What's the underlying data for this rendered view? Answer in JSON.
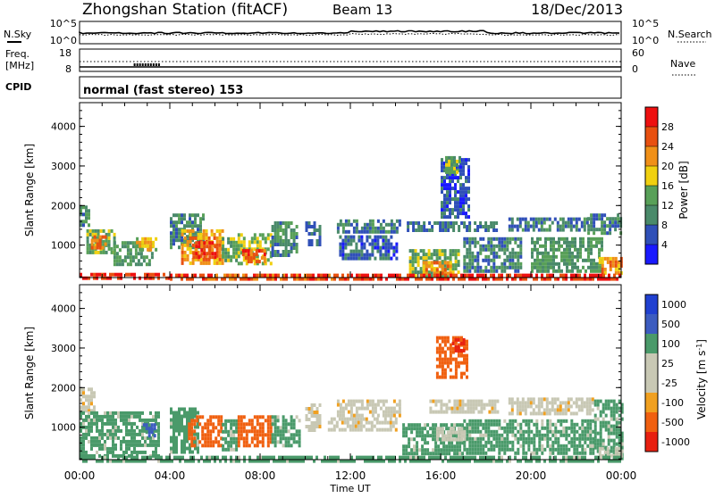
{
  "header": {
    "title": "Zhongshan Station (fitACF)",
    "beam": "Beam 13",
    "date": "18/Dec/2013"
  },
  "status_panels": {
    "nsky_label": "N.Sky",
    "nsearch_label": "N.Search",
    "freq_label_line1": "Freq.",
    "freq_label_line2": "[MHz]",
    "nave_label": "Nave",
    "cpid_label": "CPID",
    "cpid_text": "normal (fast stereo) 153",
    "noise_ticks_left": [
      "10^5",
      "10^0"
    ],
    "noise_ticks_right": [
      "10^5",
      "10^0"
    ],
    "freq_ticks_left": [
      "18",
      "8"
    ],
    "nave_ticks_right": [
      "60",
      "0"
    ]
  },
  "x_axis": {
    "label": "Time UT",
    "ticks": [
      "00:00",
      "04:00",
      "08:00",
      "12:00",
      "16:00",
      "20:00",
      "00:00"
    ],
    "tick_hours": [
      0,
      4,
      8,
      12,
      16,
      20,
      24
    ]
  },
  "colors": {
    "power": [
      "#1a1aff",
      "#3050b8",
      "#4a8a6a",
      "#58a058",
      "#f0d010",
      "#f09018",
      "#e85010",
      "#ee1010"
    ],
    "velocity": [
      "#e82010",
      "#f06010",
      "#f0a020",
      "#c8c8b4",
      "#c8c8b4",
      "#4a9a6a",
      "#3c5cc0",
      "#2040d0"
    ]
  },
  "chart_data": [
    {
      "type": "heatmap",
      "ylabel": "Slant Range [km]",
      "ylim": [
        180,
        4600
      ],
      "yticks": [
        1000,
        2000,
        3000,
        4000
      ],
      "xlim": [
        0,
        24
      ],
      "colorbar": {
        "label": "Power [dB]",
        "ticks": [
          "4",
          "8",
          "12",
          "16",
          "20",
          "24",
          "28"
        ],
        "range": [
          0,
          32
        ]
      },
      "regions": [
        {
          "t0": 0.0,
          "t1": 0.4,
          "r0": 1500,
          "r1": 2000,
          "v": 10
        },
        {
          "t0": 0.3,
          "t1": 1.5,
          "r0": 800,
          "r1": 1400,
          "v": 14
        },
        {
          "t0": 0.5,
          "t1": 1.2,
          "r0": 900,
          "r1": 1250,
          "v": 24
        },
        {
          "t0": 1.5,
          "t1": 3.2,
          "r0": 500,
          "r1": 1100,
          "v": 12
        },
        {
          "t0": 2.5,
          "t1": 3.4,
          "r0": 900,
          "r1": 1200,
          "v": 18
        },
        {
          "t0": 4.0,
          "t1": 5.5,
          "r0": 900,
          "r1": 1800,
          "v": 10
        },
        {
          "t0": 4.5,
          "t1": 6.3,
          "r0": 500,
          "r1": 1400,
          "v": 22
        },
        {
          "t0": 5.0,
          "t1": 6.0,
          "r0": 700,
          "r1": 1100,
          "v": 27
        },
        {
          "t0": 6.3,
          "t1": 7.0,
          "r0": 600,
          "r1": 1200,
          "v": 14
        },
        {
          "t0": 7.0,
          "t1": 8.5,
          "r0": 500,
          "r1": 1300,
          "v": 16
        },
        {
          "t0": 7.2,
          "t1": 8.2,
          "r0": 600,
          "r1": 900,
          "v": 26
        },
        {
          "t0": 8.5,
          "t1": 9.6,
          "r0": 700,
          "r1": 1600,
          "v": 10
        },
        {
          "t0": 10.0,
          "t1": 10.6,
          "r0": 1000,
          "r1": 1600,
          "v": 8
        },
        {
          "t0": 11.4,
          "t1": 14.2,
          "r0": 1350,
          "r1": 1650,
          "v": 9
        },
        {
          "t0": 11.5,
          "t1": 14.0,
          "r0": 700,
          "r1": 1250,
          "v": 7
        },
        {
          "t0": 14.5,
          "t1": 18.5,
          "r0": 1350,
          "r1": 1600,
          "v": 8
        },
        {
          "t0": 14.6,
          "t1": 16.8,
          "r0": 250,
          "r1": 900,
          "v": 14
        },
        {
          "t0": 15.2,
          "t1": 16.4,
          "r0": 300,
          "r1": 600,
          "v": 22
        },
        {
          "t0": 16.0,
          "t1": 17.3,
          "r0": 1700,
          "r1": 3200,
          "v": 6
        },
        {
          "t0": 16.2,
          "t1": 16.8,
          "r0": 2800,
          "r1": 3250,
          "v": 14
        },
        {
          "t0": 17.0,
          "t1": 19.5,
          "r0": 300,
          "r1": 1200,
          "v": 10
        },
        {
          "t0": 19.0,
          "t1": 22.5,
          "r0": 1350,
          "r1": 1700,
          "v": 9
        },
        {
          "t0": 20.0,
          "t1": 23.2,
          "r0": 350,
          "r1": 1200,
          "v": 12
        },
        {
          "t0": 22.5,
          "t1": 24.0,
          "r0": 1300,
          "r1": 1800,
          "v": 10
        },
        {
          "t0": 23.0,
          "t1": 24.0,
          "r0": 250,
          "r1": 700,
          "v": 22
        },
        {
          "t0": 0.0,
          "t1": 4.0,
          "r0": 180,
          "r1": 300,
          "v": 28
        },
        {
          "t0": 4.0,
          "t1": 12.0,
          "r0": 180,
          "r1": 280,
          "v": 26
        },
        {
          "t0": 12.0,
          "t1": 24.0,
          "r0": 180,
          "r1": 280,
          "v": 28
        }
      ]
    },
    {
      "type": "heatmap",
      "ylabel": "Slant Range [km]",
      "ylim": [
        180,
        4600
      ],
      "yticks": [
        1000,
        2000,
        3000,
        4000
      ],
      "xlim": [
        0,
        24
      ],
      "xlabel": "Time UT",
      "colorbar": {
        "label": "Velocity [m s^-1]",
        "ticks": [
          "-1000",
          "-500",
          "-100",
          "-25",
          "25",
          "100",
          "500",
          "1000"
        ],
        "range": [
          -1250,
          1250
        ]
      },
      "regions": [
        {
          "t0": 0.0,
          "t1": 0.6,
          "r0": 1400,
          "r1": 2000,
          "v": 0
        },
        {
          "t0": 0.0,
          "t1": 3.5,
          "r0": 250,
          "r1": 1400,
          "v": 150
        },
        {
          "t0": 2.8,
          "t1": 3.3,
          "r0": 800,
          "r1": 1100,
          "v": 700
        },
        {
          "t0": 4.0,
          "t1": 5.2,
          "r0": 400,
          "r1": 1500,
          "v": 150
        },
        {
          "t0": 4.8,
          "t1": 6.3,
          "r0": 500,
          "r1": 1300,
          "v": -300
        },
        {
          "t0": 6.3,
          "t1": 7.0,
          "r0": 400,
          "r1": 1200,
          "v": 150
        },
        {
          "t0": 7.0,
          "t1": 8.5,
          "r0": 500,
          "r1": 1300,
          "v": -300
        },
        {
          "t0": 8.5,
          "t1": 9.8,
          "r0": 500,
          "r1": 1300,
          "v": 150
        },
        {
          "t0": 10.0,
          "t1": 10.6,
          "r0": 900,
          "r1": 1600,
          "v": 0
        },
        {
          "t0": 11.4,
          "t1": 14.2,
          "r0": 1300,
          "r1": 1700,
          "v": 0
        },
        {
          "t0": 11.0,
          "t1": 14.0,
          "r0": 900,
          "r1": 1250,
          "v": 0
        },
        {
          "t0": 14.3,
          "t1": 17.0,
          "r0": 300,
          "r1": 1100,
          "v": 150
        },
        {
          "t0": 15.8,
          "t1": 17.2,
          "r0": 700,
          "r1": 1000,
          "v": 70
        },
        {
          "t0": 15.5,
          "t1": 18.5,
          "r0": 1350,
          "r1": 1700,
          "v": 0
        },
        {
          "t0": 15.8,
          "t1": 17.2,
          "r0": 2300,
          "r1": 3300,
          "v": -300
        },
        {
          "t0": 16.5,
          "t1": 17.0,
          "r0": 2900,
          "r1": 3250,
          "v": -700
        },
        {
          "t0": 17.0,
          "t1": 22.8,
          "r0": 300,
          "r1": 1200,
          "v": 150
        },
        {
          "t0": 19.0,
          "t1": 22.8,
          "r0": 1350,
          "r1": 1750,
          "v": 0
        },
        {
          "t0": 22.8,
          "t1": 24.0,
          "r0": 250,
          "r1": 1700,
          "v": 150
        },
        {
          "t0": 23.0,
          "t1": 24.0,
          "r0": 250,
          "r1": 500,
          "v": 70
        },
        {
          "t0": 0.0,
          "t1": 24.0,
          "r0": 180,
          "r1": 280,
          "v": 150
        }
      ]
    }
  ]
}
